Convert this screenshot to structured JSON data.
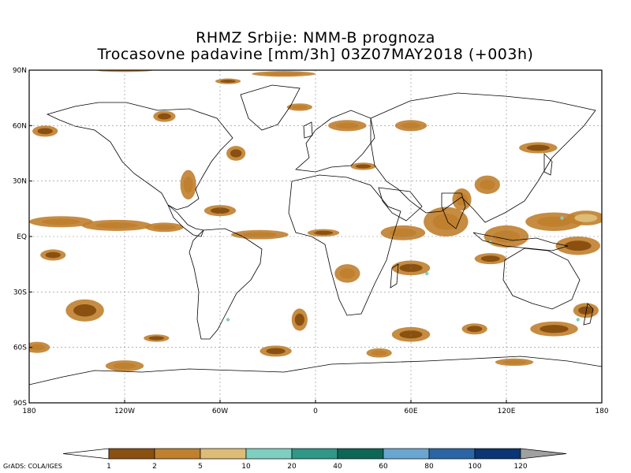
{
  "title": {
    "line1": "RHMZ Srbije: NMM-B prognoza",
    "line2": "Trocasovne padavine [mm/3h] 03Z07MAY2018 (+003h)"
  },
  "axes": {
    "lat_labels": [
      {
        "value": 90,
        "label": "90N"
      },
      {
        "value": 60,
        "label": "60N"
      },
      {
        "value": 30,
        "label": "30N"
      },
      {
        "value": 0,
        "label": "EQ"
      },
      {
        "value": -30,
        "label": "30S"
      },
      {
        "value": -60,
        "label": "60S"
      },
      {
        "value": -90,
        "label": "90S"
      }
    ],
    "lon_labels": [
      {
        "value": -180,
        "label": "180"
      },
      {
        "value": -120,
        "label": "120W"
      },
      {
        "value": -60,
        "label": "60W"
      },
      {
        "value": 0,
        "label": "0"
      },
      {
        "value": 60,
        "label": "60E"
      },
      {
        "value": 120,
        "label": "120E"
      },
      {
        "value": 180,
        "label": "180"
      }
    ],
    "lon_range": [
      -180,
      180
    ],
    "lat_range": [
      -90,
      90
    ],
    "grid": true
  },
  "colorbar": {
    "levels": [
      "1",
      "2",
      "5",
      "10",
      "20",
      "40",
      "60",
      "80",
      "100",
      "120"
    ],
    "colors": [
      "#8a5010",
      "#c0802e",
      "#dcbc76",
      "#7ecfc0",
      "#2f9886",
      "#0e6656",
      "#6aa6d2",
      "#2a66a6",
      "#0b3574",
      "#a0a0a0"
    ],
    "low_color": "#ffffff",
    "high_color": "#a0a0a0"
  },
  "footer": "GrADS: COLA/IGES",
  "precip_areas": [
    {
      "lon": -160,
      "lat": 8,
      "rx": 20,
      "ry": 3,
      "level": 1
    },
    {
      "lon": -125,
      "lat": 6,
      "rx": 22,
      "ry": 3,
      "level": 1
    },
    {
      "lon": -95,
      "lat": 5,
      "rx": 12,
      "ry": 2.5,
      "level": 1
    },
    {
      "lon": -60,
      "lat": 14,
      "rx": 10,
      "ry": 3,
      "level": 0
    },
    {
      "lon": -35,
      "lat": 1,
      "rx": 18,
      "ry": 2.5,
      "level": 1
    },
    {
      "lon": 5,
      "lat": 2,
      "rx": 10,
      "ry": 2,
      "level": 0
    },
    {
      "lon": 55,
      "lat": 2,
      "rx": 14,
      "ry": 4,
      "level": 1
    },
    {
      "lon": 82,
      "lat": 8,
      "rx": 14,
      "ry": 8,
      "level": 1
    },
    {
      "lon": 92,
      "lat": 20,
      "rx": 6,
      "ry": 6,
      "level": 1
    },
    {
      "lon": 108,
      "lat": 28,
      "rx": 8,
      "ry": 5,
      "level": 1
    },
    {
      "lon": 120,
      "lat": 0,
      "rx": 14,
      "ry": 6,
      "level": 1
    },
    {
      "lon": 150,
      "lat": 8,
      "rx": 18,
      "ry": 5,
      "level": 1
    },
    {
      "lon": 165,
      "lat": -5,
      "rx": 14,
      "ry": 5,
      "level": 0
    },
    {
      "lon": 170,
      "lat": 10,
      "rx": 12,
      "ry": 4,
      "level": 2
    },
    {
      "lon": -80,
      "lat": 28,
      "rx": 5,
      "ry": 8,
      "level": 1
    },
    {
      "lon": -50,
      "lat": 45,
      "rx": 6,
      "ry": 4,
      "level": 0
    },
    {
      "lon": -170,
      "lat": 57,
      "rx": 8,
      "ry": 3,
      "level": 0
    },
    {
      "lon": -120,
      "lat": 90,
      "rx": 18,
      "ry": 1,
      "level": 1
    },
    {
      "lon": -20,
      "lat": 88,
      "rx": 20,
      "ry": 1.5,
      "level": 1
    },
    {
      "lon": -55,
      "lat": 84,
      "rx": 8,
      "ry": 1.5,
      "level": 0
    },
    {
      "lon": 20,
      "lat": 60,
      "rx": 12,
      "ry": 3,
      "level": 1
    },
    {
      "lon": -10,
      "lat": 70,
      "rx": 8,
      "ry": 2,
      "level": 1
    },
    {
      "lon": -95,
      "lat": 65,
      "rx": 7,
      "ry": 3,
      "level": 0
    },
    {
      "lon": 60,
      "lat": 60,
      "rx": 10,
      "ry": 3,
      "level": 1
    },
    {
      "lon": 140,
      "lat": 48,
      "rx": 12,
      "ry": 3,
      "level": 0
    },
    {
      "lon": 30,
      "lat": 38,
      "rx": 8,
      "ry": 2,
      "level": 0
    },
    {
      "lon": -165,
      "lat": -10,
      "rx": 8,
      "ry": 3,
      "level": 0
    },
    {
      "lon": -145,
      "lat": -40,
      "rx": 12,
      "ry": 6,
      "level": 0
    },
    {
      "lon": -175,
      "lat": -60,
      "rx": 8,
      "ry": 3,
      "level": 1
    },
    {
      "lon": -120,
      "lat": -70,
      "rx": 12,
      "ry": 3,
      "level": 1
    },
    {
      "lon": -100,
      "lat": -55,
      "rx": 8,
      "ry": 2,
      "level": 0
    },
    {
      "lon": -25,
      "lat": -62,
      "rx": 10,
      "ry": 3,
      "level": 0
    },
    {
      "lon": -10,
      "lat": -45,
      "rx": 5,
      "ry": 6,
      "level": 0
    },
    {
      "lon": 40,
      "lat": -63,
      "rx": 8,
      "ry": 2.5,
      "level": 1
    },
    {
      "lon": 60,
      "lat": -53,
      "rx": 12,
      "ry": 4,
      "level": 0
    },
    {
      "lon": 100,
      "lat": -50,
      "rx": 8,
      "ry": 3,
      "level": 0
    },
    {
      "lon": 125,
      "lat": -68,
      "rx": 12,
      "ry": 2,
      "level": 1
    },
    {
      "lon": 150,
      "lat": -50,
      "rx": 15,
      "ry": 4,
      "level": 0
    },
    {
      "lon": 170,
      "lat": -40,
      "rx": 8,
      "ry": 4,
      "level": 0
    },
    {
      "lon": 60,
      "lat": -17,
      "rx": 12,
      "ry": 4,
      "level": 0
    },
    {
      "lon": 110,
      "lat": -12,
      "rx": 10,
      "ry": 3,
      "level": 0
    },
    {
      "lon": 20,
      "lat": -20,
      "rx": 8,
      "ry": 5,
      "level": 1
    }
  ],
  "heavy_spots": [
    {
      "lon": 155,
      "lat": 10,
      "level": 3
    },
    {
      "lon": -55,
      "lat": -45,
      "level": 3
    },
    {
      "lon": 110,
      "lat": -3,
      "level": 3
    },
    {
      "lon": 165,
      "lat": -45,
      "level": 3
    },
    {
      "lon": 70,
      "lat": -20,
      "level": 3
    }
  ]
}
